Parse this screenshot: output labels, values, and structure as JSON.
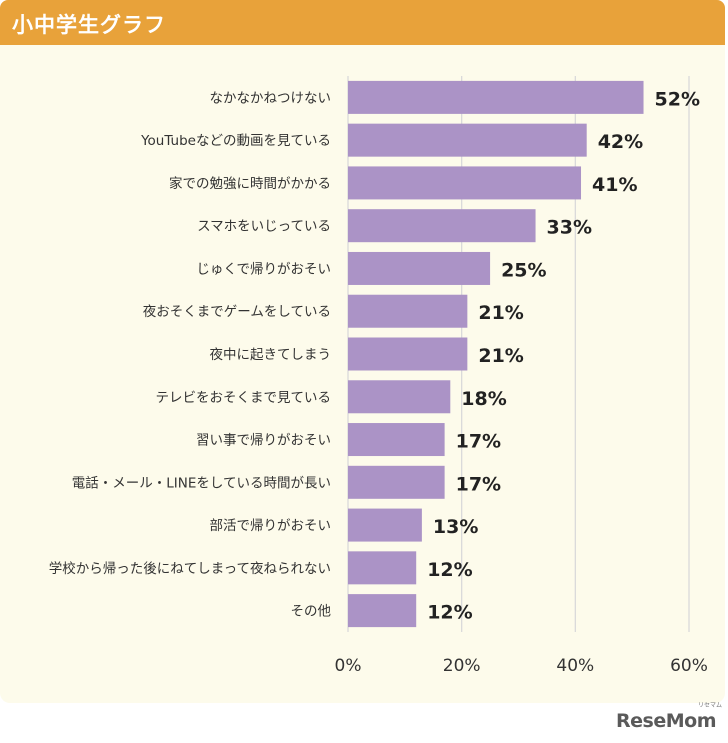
{
  "header": {
    "title": "小中学生グラフ"
  },
  "chart_data": {
    "type": "bar",
    "orientation": "horizontal",
    "categories": [
      "なかなかねつけない",
      "YouTubeなどの動画を見ている",
      "家での勉強に時間がかかる",
      "スマホをいじっている",
      "じゅくで帰りがおそい",
      "夜おそくまでゲームをしている",
      "夜中に起きてしまう",
      "テレビをおそくまで見ている",
      "習い事で帰りがおそい",
      "電話・メール・LINEをしている時間が長い",
      "部活で帰りがおそい",
      "学校から帰った後にねてしまって夜ねられない",
      "その他"
    ],
    "values": [
      52,
      42,
      41,
      33,
      25,
      21,
      21,
      18,
      17,
      17,
      13,
      12,
      12
    ],
    "value_labels": [
      "52%",
      "42%",
      "41%",
      "33%",
      "25%",
      "21%",
      "21%",
      "18%",
      "17%",
      "17%",
      "13%",
      "12%",
      "12%"
    ],
    "xlim": [
      0,
      60
    ],
    "xticks": [
      0,
      20,
      40,
      60
    ],
    "xtick_labels": [
      "0%",
      "20%",
      "40%",
      "60%"
    ],
    "grid": true,
    "bar_color": "#ab93c6",
    "grid_color": "#d9d9d9"
  },
  "logo": {
    "text": "ReseMom",
    "small": "リセマム"
  }
}
